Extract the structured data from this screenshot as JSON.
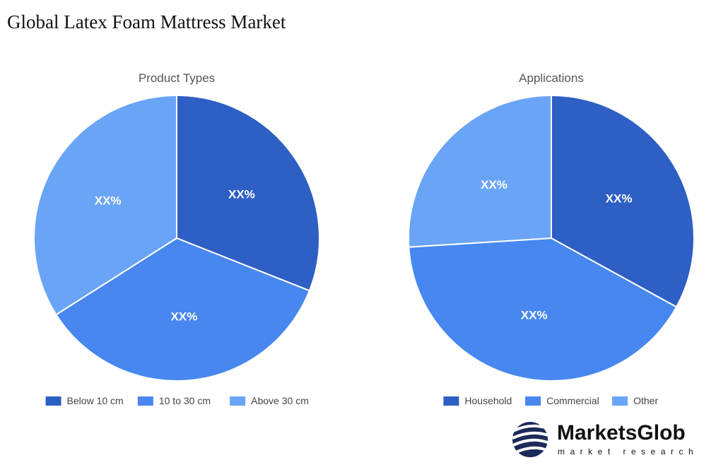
{
  "title": "Global Latex Foam Mattress Market",
  "chart_data": [
    {
      "type": "pie",
      "title": "Product Types",
      "categories": [
        "Below 10 cm",
        "10 to 30 cm",
        "Above 30 cm"
      ],
      "values": [
        31,
        35,
        34
      ],
      "value_labels": [
        "XX%",
        "XX%",
        "XX%"
      ],
      "colors": [
        "#2d5fc4",
        "#4787ef",
        "#6aa4f6"
      ]
    },
    {
      "type": "pie",
      "title": "Applications",
      "categories": [
        "Household",
        "Commercial",
        "Other"
      ],
      "values": [
        33,
        41,
        26
      ],
      "value_labels": [
        "XX%",
        "XX%",
        "XX%"
      ],
      "colors": [
        "#2d5fc4",
        "#4787ef",
        "#6aa4f6"
      ]
    }
  ],
  "logo": {
    "name": "MarketsGlob",
    "tagline": "market research"
  }
}
